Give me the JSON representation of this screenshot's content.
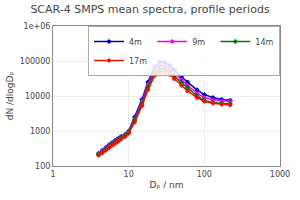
{
  "chart_data": {
    "type": "line",
    "title": "SCAR-4 SMPS mean spectra, profile periods",
    "xlabel": "Dₚ / nm",
    "ylabel": "dN /dlogDₚ",
    "log": true,
    "grid": true,
    "legend": "upper right",
    "x": [
      4.0,
      4.5,
      5.0,
      5.5,
      6.0,
      6.5,
      7.0,
      7.5,
      8.0,
      9.0,
      10.0,
      12.0,
      15.0,
      18.0,
      22.0,
      26.0,
      30.0,
      35.0,
      40.0,
      50.0,
      60.0,
      80.0,
      100.0,
      130.0,
      170.0,
      220.0
    ],
    "xlim": [
      1,
      1000
    ],
    "xticks": [
      1,
      10,
      100,
      1000
    ],
    "ylim": [
      100,
      1000000
    ],
    "yticks": [
      100,
      1000,
      10000,
      100000,
      {
        "value": 1000000,
        "label": "1e+06"
      }
    ],
    "series": [
      {
        "name": "4m",
        "color": "#0000bb",
        "marker": "diamond",
        "values": [
          230,
          280,
          340,
          400,
          460,
          520,
          580,
          640,
          700,
          800,
          1000,
          2500,
          8000,
          25000,
          65000,
          95000,
          90000,
          75000,
          55000,
          35000,
          25000,
          15000,
          11000,
          9000,
          8000,
          7500
        ]
      },
      {
        "name": "9m",
        "color": "#ee00ee",
        "marker": "diamond",
        "values": [
          220,
          265,
          320,
          375,
          430,
          490,
          545,
          600,
          660,
          760,
          950,
          2200,
          7000,
          21000,
          55000,
          75000,
          72000,
          60000,
          45000,
          29000,
          20000,
          12000,
          9000,
          7800,
          7200,
          7000
        ]
      },
      {
        "name": "14m",
        "color": "#007700",
        "marker": "diamond",
        "values": [
          210,
          250,
          300,
          355,
          405,
          460,
          515,
          570,
          625,
          720,
          900,
          2000,
          6000,
          18000,
          46000,
          60000,
          58000,
          49000,
          37000,
          24000,
          17000,
          10000,
          7500,
          6500,
          6200,
          6000
        ]
      },
      {
        "name": "17m",
        "color": "#ee1100",
        "marker": "diamond",
        "values": [
          200,
          235,
          280,
          330,
          380,
          430,
          480,
          535,
          590,
          685,
          860,
          1800,
          5200,
          15000,
          38000,
          50000,
          48000,
          41000,
          31000,
          20000,
          14000,
          9000,
          7000,
          6200,
          5800,
          5500
        ]
      }
    ]
  }
}
